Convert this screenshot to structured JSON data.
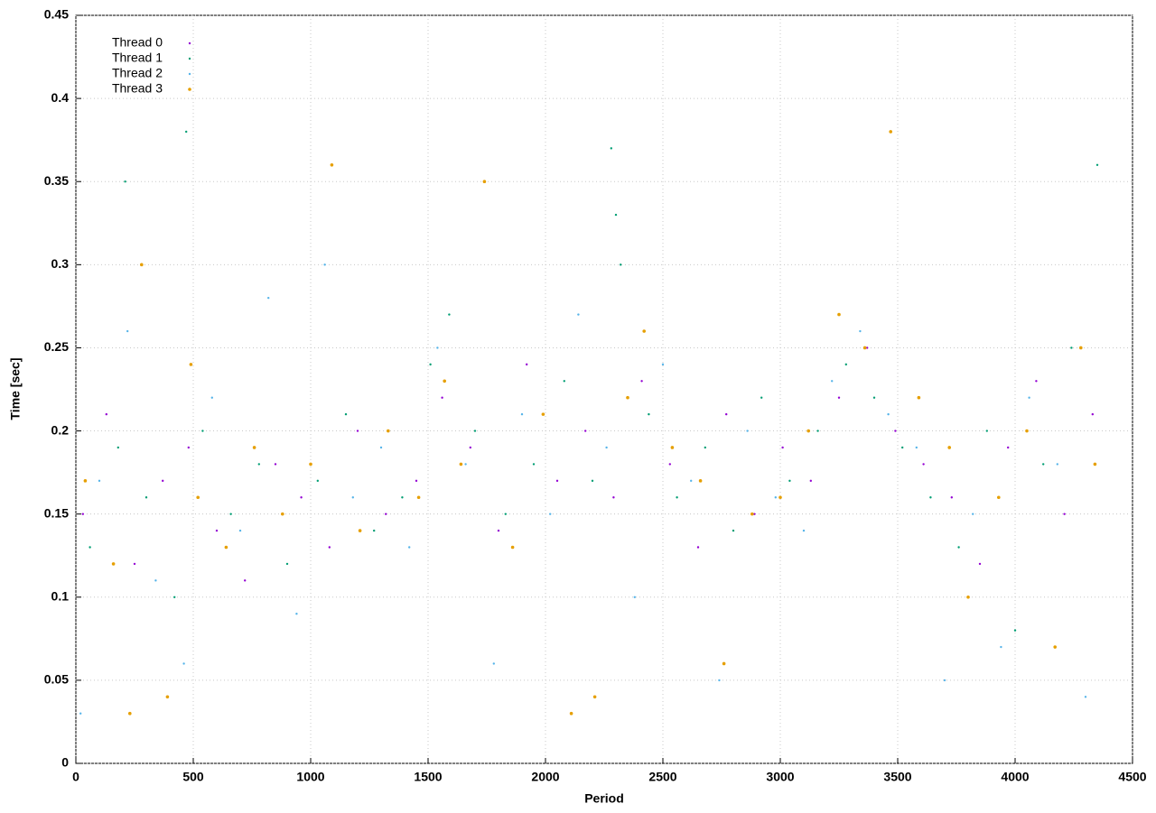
{
  "chart_data": {
    "type": "scatter",
    "xlabel": "Period",
    "ylabel": "Time [sec]",
    "xlim": [
      0,
      4500
    ],
    "ylim": [
      0,
      0.45
    ],
    "xticks": [
      0,
      500,
      1000,
      1500,
      2000,
      2500,
      3000,
      3500,
      4000,
      4500
    ],
    "yticks": [
      0,
      0.05,
      0.1,
      0.15,
      0.2,
      0.25,
      0.3,
      0.35,
      0.4,
      0.45
    ],
    "grid": true,
    "legend": "top-left",
    "series": [
      {
        "name": "Thread 0",
        "color": "#9400d3",
        "x": [
          30,
          130,
          250,
          370,
          480,
          600,
          720,
          850,
          960,
          1080,
          1200,
          1320,
          1450,
          1560,
          1680,
          1800,
          1920,
          2050,
          2170,
          2290,
          2410,
          2530,
          2650,
          2770,
          2890,
          3010,
          3130,
          3250,
          3370,
          3490,
          3610,
          3730,
          3850,
          3970,
          4090,
          4210,
          4330
        ],
        "values": [
          0.15,
          0.21,
          0.12,
          0.17,
          0.19,
          0.14,
          0.11,
          0.18,
          0.16,
          0.13,
          0.2,
          0.15,
          0.17,
          0.22,
          0.19,
          0.14,
          0.24,
          0.17,
          0.2,
          0.16,
          0.23,
          0.18,
          0.13,
          0.21,
          0.15,
          0.19,
          0.17,
          0.22,
          0.25,
          0.2,
          0.18,
          0.16,
          0.12,
          0.19,
          0.23,
          0.15,
          0.21
        ]
      },
      {
        "name": "Thread 1",
        "color": "#009e73",
        "x": [
          60,
          180,
          210,
          300,
          420,
          470,
          540,
          660,
          780,
          900,
          1030,
          1150,
          1270,
          1390,
          1510,
          1590,
          1700,
          1830,
          1950,
          2080,
          2200,
          2280,
          2300,
          2320,
          2440,
          2560,
          2680,
          2800,
          2920,
          3040,
          3160,
          3280,
          3400,
          3520,
          3640,
          3760,
          3880,
          4000,
          4120,
          4240,
          4350
        ],
        "values": [
          0.13,
          0.19,
          0.35,
          0.16,
          0.1,
          0.38,
          0.2,
          0.15,
          0.18,
          0.12,
          0.17,
          0.21,
          0.14,
          0.16,
          0.24,
          0.27,
          0.2,
          0.15,
          0.18,
          0.23,
          0.17,
          0.37,
          0.33,
          0.3,
          0.21,
          0.16,
          0.19,
          0.14,
          0.22,
          0.17,
          0.2,
          0.24,
          0.22,
          0.19,
          0.16,
          0.13,
          0.2,
          0.08,
          0.18,
          0.25,
          0.36
        ]
      },
      {
        "name": "Thread 2",
        "color": "#56b4e9",
        "x": [
          20,
          100,
          220,
          340,
          460,
          580,
          700,
          820,
          940,
          1060,
          1180,
          1300,
          1420,
          1540,
          1660,
          1780,
          1900,
          2020,
          2140,
          2260,
          2380,
          2500,
          2620,
          2740,
          2860,
          2980,
          3100,
          3220,
          3340,
          3460,
          3580,
          3700,
          3820,
          3940,
          4060,
          4180,
          4300
        ],
        "values": [
          0.03,
          0.17,
          0.26,
          0.11,
          0.06,
          0.22,
          0.14,
          0.28,
          0.09,
          0.3,
          0.16,
          0.19,
          0.13,
          0.25,
          0.18,
          0.06,
          0.21,
          0.15,
          0.27,
          0.19,
          0.1,
          0.24,
          0.17,
          0.05,
          0.2,
          0.16,
          0.14,
          0.23,
          0.26,
          0.21,
          0.19,
          0.05,
          0.15,
          0.07,
          0.22,
          0.18,
          0.04
        ]
      },
      {
        "name": "Thread 3",
        "color": "#e69f00",
        "x": [
          40,
          160,
          230,
          280,
          390,
          490,
          520,
          640,
          760,
          880,
          1000,
          1090,
          1210,
          1330,
          1460,
          1570,
          1640,
          1740,
          1860,
          1990,
          2110,
          2210,
          2350,
          2420,
          2540,
          2660,
          2760,
          2880,
          3000,
          3120,
          3250,
          3360,
          3470,
          3590,
          3720,
          3800,
          3930,
          4050,
          4170,
          4280,
          4340
        ],
        "values": [
          0.17,
          0.12,
          0.03,
          0.3,
          0.04,
          0.24,
          0.16,
          0.13,
          0.19,
          0.15,
          0.18,
          0.36,
          0.14,
          0.2,
          0.16,
          0.23,
          0.18,
          0.35,
          0.13,
          0.21,
          0.03,
          0.04,
          0.22,
          0.26,
          0.19,
          0.17,
          0.06,
          0.15,
          0.16,
          0.2,
          0.27,
          0.25,
          0.38,
          0.22,
          0.19,
          0.1,
          0.16,
          0.2,
          0.07,
          0.25,
          0.18
        ]
      }
    ]
  }
}
